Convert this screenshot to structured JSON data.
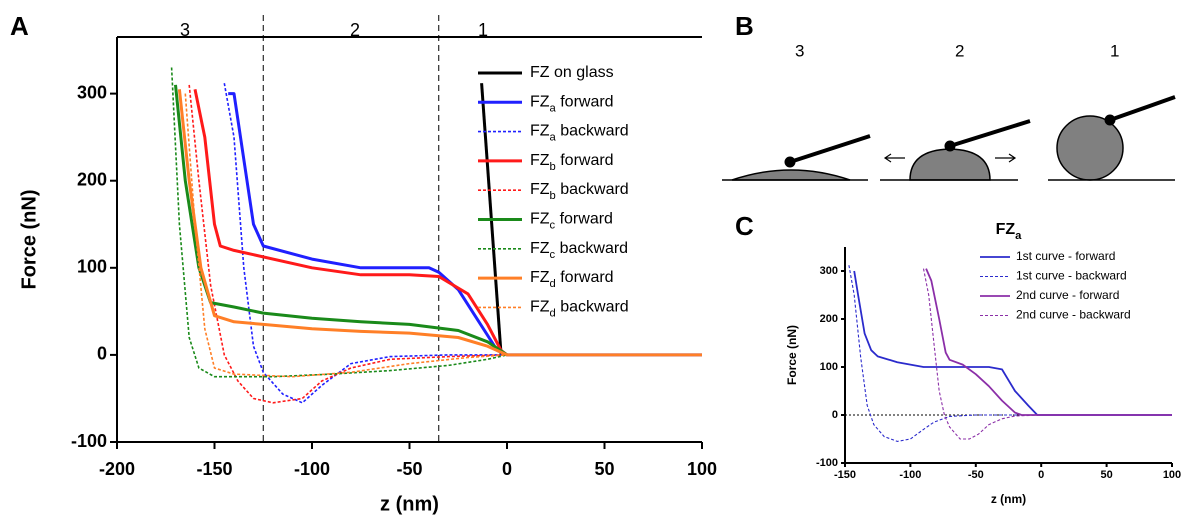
{
  "chart_data": [
    {
      "type": "line",
      "panel_label": "A",
      "region_labels": [
        "3",
        "2",
        "1"
      ],
      "vlines": [
        -125,
        -35
      ],
      "xlabel": "z (nm)",
      "ylabel": "Force (nN)",
      "xlim": [
        -200,
        100
      ],
      "ylim": [
        -100,
        365
      ],
      "xticks": [
        -200,
        -150,
        -100,
        -50,
        0,
        50,
        100
      ],
      "yticks": [
        -100,
        0,
        100,
        200,
        300
      ],
      "legend": "upper right",
      "series": [
        {
          "name": "FZ on glass",
          "color": "#000000",
          "linestyle": "solid",
          "x": [
            -13,
            -3
          ],
          "values": [
            312,
            0
          ]
        },
        {
          "name": "FZa forward",
          "color": "#2020ff",
          "linestyle": "solid",
          "x": [
            -143,
            -140,
            -130,
            -125,
            -100,
            -75,
            -50,
            -40,
            -35,
            -25,
            -15,
            -5,
            0,
            100
          ],
          "values": [
            300,
            300,
            150,
            125,
            110,
            100,
            100,
            100,
            95,
            75,
            40,
            5,
            0,
            0
          ]
        },
        {
          "name": "FZa backward",
          "color": "#2020ff",
          "linestyle": "dotted",
          "x": [
            -145,
            -140,
            -135,
            -130,
            -125,
            -115,
            -105,
            -95,
            -80,
            -60,
            -30,
            0,
            100
          ],
          "values": [
            312,
            250,
            100,
            10,
            -20,
            -45,
            -55,
            -35,
            -10,
            -2,
            0,
            0,
            0
          ]
        },
        {
          "name": "FZb forward",
          "color": "#ff1a1a",
          "linestyle": "solid",
          "x": [
            -160,
            -155,
            -150,
            -147,
            -140,
            -130,
            -100,
            -75,
            -50,
            -35,
            -20,
            -10,
            -3,
            0
          ],
          "values": [
            305,
            250,
            150,
            125,
            120,
            115,
            100,
            92,
            92,
            90,
            70,
            35,
            5,
            0
          ]
        },
        {
          "name": "FZb backward",
          "color": "#ff1a1a",
          "linestyle": "dotted",
          "x": [
            -163,
            -158,
            -152,
            -145,
            -138,
            -130,
            -120,
            -105,
            -95,
            -80,
            -60,
            -30,
            0
          ],
          "values": [
            310,
            200,
            80,
            0,
            -30,
            -50,
            -55,
            -50,
            -30,
            -15,
            -5,
            -2,
            0
          ]
        },
        {
          "name": "FZc forward",
          "color": "#1a8a1a",
          "linestyle": "solid",
          "x": [
            -170,
            -165,
            -158,
            -152,
            -140,
            -125,
            -100,
            -75,
            -50,
            -25,
            -10,
            0
          ],
          "values": [
            310,
            200,
            100,
            60,
            55,
            48,
            42,
            38,
            35,
            28,
            15,
            0
          ]
        },
        {
          "name": "FZc backward",
          "color": "#1a8a1a",
          "linestyle": "dotted",
          "x": [
            -172,
            -168,
            -163,
            -158,
            -150,
            -120,
            -90,
            -60,
            -30,
            -10,
            0,
            100
          ],
          "values": [
            330,
            150,
            20,
            -15,
            -25,
            -25,
            -22,
            -18,
            -12,
            -5,
            0,
            0
          ]
        },
        {
          "name": "FZd forward",
          "color": "#ff7f27",
          "linestyle": "solid",
          "x": [
            -168,
            -163,
            -157,
            -150,
            -140,
            -125,
            -100,
            -75,
            -50,
            -25,
            -10,
            0,
            100
          ],
          "values": [
            305,
            200,
            100,
            45,
            38,
            35,
            30,
            27,
            25,
            20,
            10,
            0,
            0
          ]
        },
        {
          "name": "FZd backward",
          "color": "#ff7f27",
          "linestyle": "dotted",
          "x": [
            -165,
            -160,
            -155,
            -150,
            -140,
            -110,
            -80,
            -50,
            -20,
            0,
            100
          ],
          "values": [
            300,
            150,
            30,
            -15,
            -22,
            -25,
            -20,
            -10,
            -3,
            0,
            0
          ]
        }
      ]
    },
    {
      "type": "line",
      "panel_label": "C",
      "title": "FZa",
      "hline": 0,
      "xlabel": "z (nm)",
      "ylabel": "Force (nN)",
      "xlim": [
        -150,
        100
      ],
      "ylim": [
        -100,
        350
      ],
      "xticks": [
        -150,
        -100,
        -50,
        0,
        50,
        100
      ],
      "yticks": [
        -100,
        0,
        100,
        200,
        300
      ],
      "legend": "upper right",
      "series": [
        {
          "name": "1st curve - forward",
          "color": "#2b2bcc",
          "linestyle": "solid",
          "x": [
            -143,
            -140,
            -135,
            -130,
            -125,
            -110,
            -90,
            -70,
            -50,
            -40,
            -30,
            -20,
            -10,
            -3,
            100
          ],
          "values": [
            300,
            250,
            170,
            135,
            122,
            110,
            100,
            100,
            100,
            100,
            95,
            50,
            20,
            0,
            0
          ]
        },
        {
          "name": "1st curve - backward",
          "color": "#2b2bcc",
          "linestyle": "dotted",
          "x": [
            -147,
            -143,
            -138,
            -133,
            -128,
            -120,
            -110,
            -100,
            -90,
            -82,
            -70,
            -50,
            0
          ],
          "values": [
            312,
            250,
            120,
            20,
            -20,
            -45,
            -55,
            -50,
            -30,
            -15,
            -3,
            0,
            0
          ]
        },
        {
          "name": "2nd curve - forward",
          "color": "#8b2fa8",
          "linestyle": "solid",
          "x": [
            -88,
            -84,
            -78,
            -73,
            -70,
            -60,
            -50,
            -40,
            -30,
            -20,
            -15,
            100
          ],
          "values": [
            305,
            280,
            200,
            130,
            115,
            105,
            85,
            60,
            30,
            5,
            0,
            0
          ]
        },
        {
          "name": "2nd curve - backward",
          "color": "#8b2fa8",
          "linestyle": "dotted",
          "x": [
            -90,
            -86,
            -82,
            -78,
            -74,
            -70,
            -62,
            -55,
            -48,
            -40,
            -30,
            -20,
            0,
            100
          ],
          "values": [
            305,
            250,
            150,
            50,
            0,
            -25,
            -50,
            -50,
            -40,
            -20,
            -8,
            -2,
            0,
            0
          ]
        }
      ]
    }
  ],
  "diagram": {
    "panel_label": "B",
    "labels": [
      "3",
      "2",
      "1"
    ]
  }
}
